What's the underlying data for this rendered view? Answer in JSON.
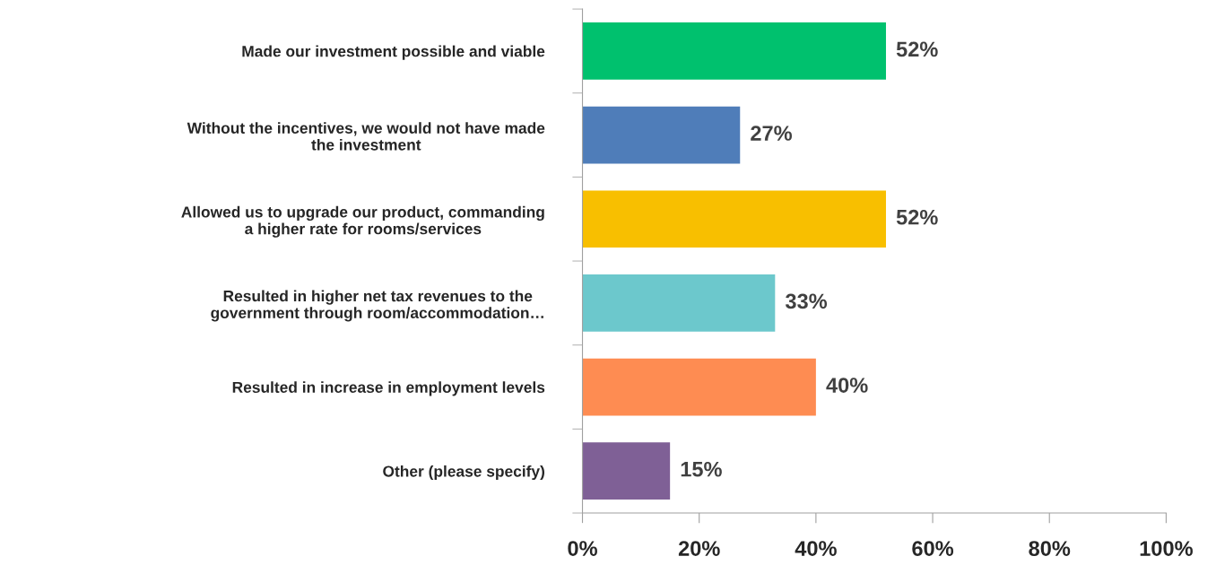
{
  "chart_data": {
    "type": "bar",
    "orientation": "horizontal",
    "categories": [
      "Made our investment possible and viable",
      "Without the incentives, we would not have made\nthe investment",
      "Allowed us to upgrade our product, commanding\na higher rate for rooms/services",
      "Resulted in higher net tax revenues to the\ngovernment through room/accommodation…",
      "Resulted in increase in employment levels",
      "Other (please specify)"
    ],
    "values": [
      52,
      27,
      52,
      33,
      40,
      15
    ],
    "colors": [
      "#00c16e",
      "#4f7db9",
      "#f8bf00",
      "#6cc8cc",
      "#fe8c52",
      "#7f6096"
    ],
    "value_labels": [
      "52%",
      "27%",
      "52%",
      "33%",
      "40%",
      "15%"
    ],
    "xlim": [
      0,
      100
    ],
    "xticks": [
      {
        "value": 0,
        "label": "0%"
      },
      {
        "value": 20,
        "label": "20%"
      },
      {
        "value": 40,
        "label": "40%"
      },
      {
        "value": 60,
        "label": "60%"
      },
      {
        "value": 80,
        "label": "80%"
      },
      {
        "value": 100,
        "label": "100%"
      }
    ],
    "grid": false,
    "legend": false
  }
}
